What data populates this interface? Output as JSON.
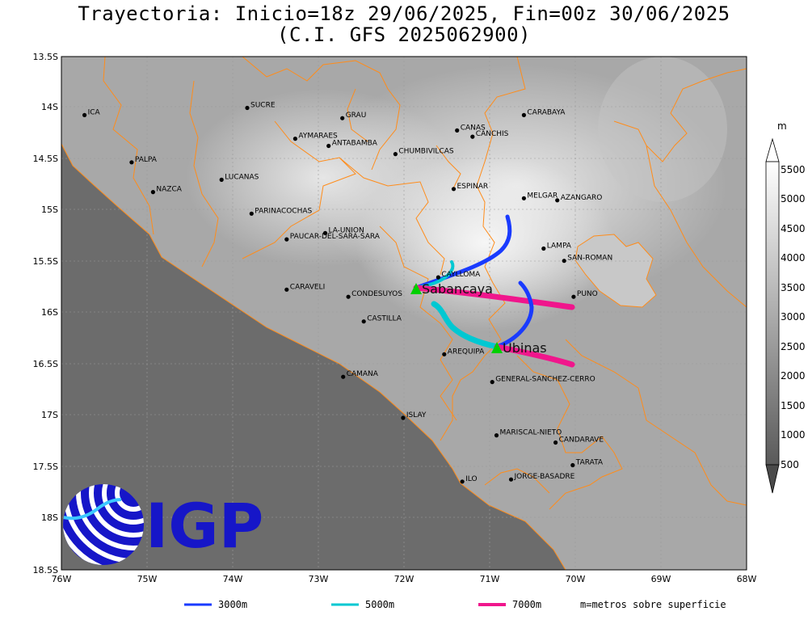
{
  "title_line1": "Trayectoria: Inicio=18z 29/06/2025, Fin=00z 30/06/2025",
  "title_line2": "(C.I. GFS 2025062900)",
  "lat_ticks": [
    "13.5S",
    "14S",
    "14.5S",
    "15S",
    "15.5S",
    "16S",
    "16.5S",
    "17S",
    "17.5S",
    "18S",
    "18.5S"
  ],
  "lon_ticks": [
    "76W",
    "75W",
    "74W",
    "73W",
    "72W",
    "71W",
    "70W",
    "69W",
    "68W"
  ],
  "colorbar": {
    "unit": "m",
    "levels": [
      "5500",
      "5000",
      "4500",
      "4000",
      "3500",
      "3000",
      "2500",
      "2000",
      "1500",
      "1000",
      "500"
    ]
  },
  "places": [
    {
      "name": "ICA",
      "lon": -75.73,
      "lat": -14.07
    },
    {
      "name": "SUCRE",
      "lon": -73.83,
      "lat": -14.0
    },
    {
      "name": "GRAU",
      "lon": -72.72,
      "lat": -14.1
    },
    {
      "name": "CARABAYA",
      "lon": -70.6,
      "lat": -14.07
    },
    {
      "name": "AYMARAES",
      "lon": -73.27,
      "lat": -14.3
    },
    {
      "name": "CANAS",
      "lon": -71.38,
      "lat": -14.22
    },
    {
      "name": "CANCHIS",
      "lon": -71.2,
      "lat": -14.28
    },
    {
      "name": "ANTABAMBA",
      "lon": -72.88,
      "lat": -14.37
    },
    {
      "name": "CHUMBIVILCAS",
      "lon": -72.1,
      "lat": -14.45
    },
    {
      "name": "PALPA",
      "lon": -75.18,
      "lat": -14.53
    },
    {
      "name": "LUCANAS",
      "lon": -74.13,
      "lat": -14.7
    },
    {
      "name": "ESPINAR",
      "lon": -71.42,
      "lat": -14.79
    },
    {
      "name": "NAZCA",
      "lon": -74.93,
      "lat": -14.82
    },
    {
      "name": "MELGAR",
      "lon": -70.6,
      "lat": -14.88
    },
    {
      "name": "AZANGARO",
      "lon": -70.21,
      "lat": -14.9
    },
    {
      "name": "PARINACOCHAS",
      "lon": -73.78,
      "lat": -15.03
    },
    {
      "name": "LA-UNION",
      "lon": -72.92,
      "lat": -15.22
    },
    {
      "name": "PAUCAR-DEL-SARA-SARA",
      "lon": -73.37,
      "lat": -15.28
    },
    {
      "name": "LAMPA",
      "lon": -70.37,
      "lat": -15.37
    },
    {
      "name": "SAN-ROMAN",
      "lon": -70.13,
      "lat": -15.49
    },
    {
      "name": "CAYLLOMA",
      "lon": -71.6,
      "lat": -15.65
    },
    {
      "name": "CARAVELI",
      "lon": -73.37,
      "lat": -15.77
    },
    {
      "name": "PUNO",
      "lon": -70.02,
      "lat": -15.84
    },
    {
      "name": "CONDESUYOS",
      "lon": -72.65,
      "lat": -15.84
    },
    {
      "name": "CASTILLA",
      "lon": -72.47,
      "lat": -16.08
    },
    {
      "name": "AREQUIPA",
      "lon": -71.53,
      "lat": -16.4
    },
    {
      "name": "CAMANA",
      "lon": -72.71,
      "lat": -16.62
    },
    {
      "name": "GENERAL-SANCHEZ-CERRO",
      "lon": -70.97,
      "lat": -16.67
    },
    {
      "name": "ISLAY",
      "lon": -72.01,
      "lat": -17.02
    },
    {
      "name": "MARISCAL-NIETO",
      "lon": -70.92,
      "lat": -17.19
    },
    {
      "name": "CANDARAVE",
      "lon": -70.23,
      "lat": -17.26
    },
    {
      "name": "TARATA",
      "lon": -70.03,
      "lat": -17.48
    },
    {
      "name": "ILO",
      "lon": -71.32,
      "lat": -17.64
    },
    {
      "name": "JORGE-BASADRE",
      "lon": -70.75,
      "lat": -17.62
    }
  ],
  "volcanoes": [
    {
      "name": "Sabancaya",
      "lon": -71.85,
      "lat": -15.78
    },
    {
      "name": "Ubinas",
      "lon": -70.9,
      "lat": -16.35
    }
  ],
  "legend": {
    "items": [
      {
        "label": "3000m",
        "color": "#1a3bff"
      },
      {
        "label": "5000m",
        "color": "#00c8d2"
      },
      {
        "label": "7000m",
        "color": "#f0168c"
      }
    ],
    "note": "m=metros sobre superficie"
  },
  "logo": {
    "text": "IGP",
    "color": "#1616c8"
  },
  "colors": {
    "border": "#ff8c1a",
    "volcano": "#00d000"
  }
}
